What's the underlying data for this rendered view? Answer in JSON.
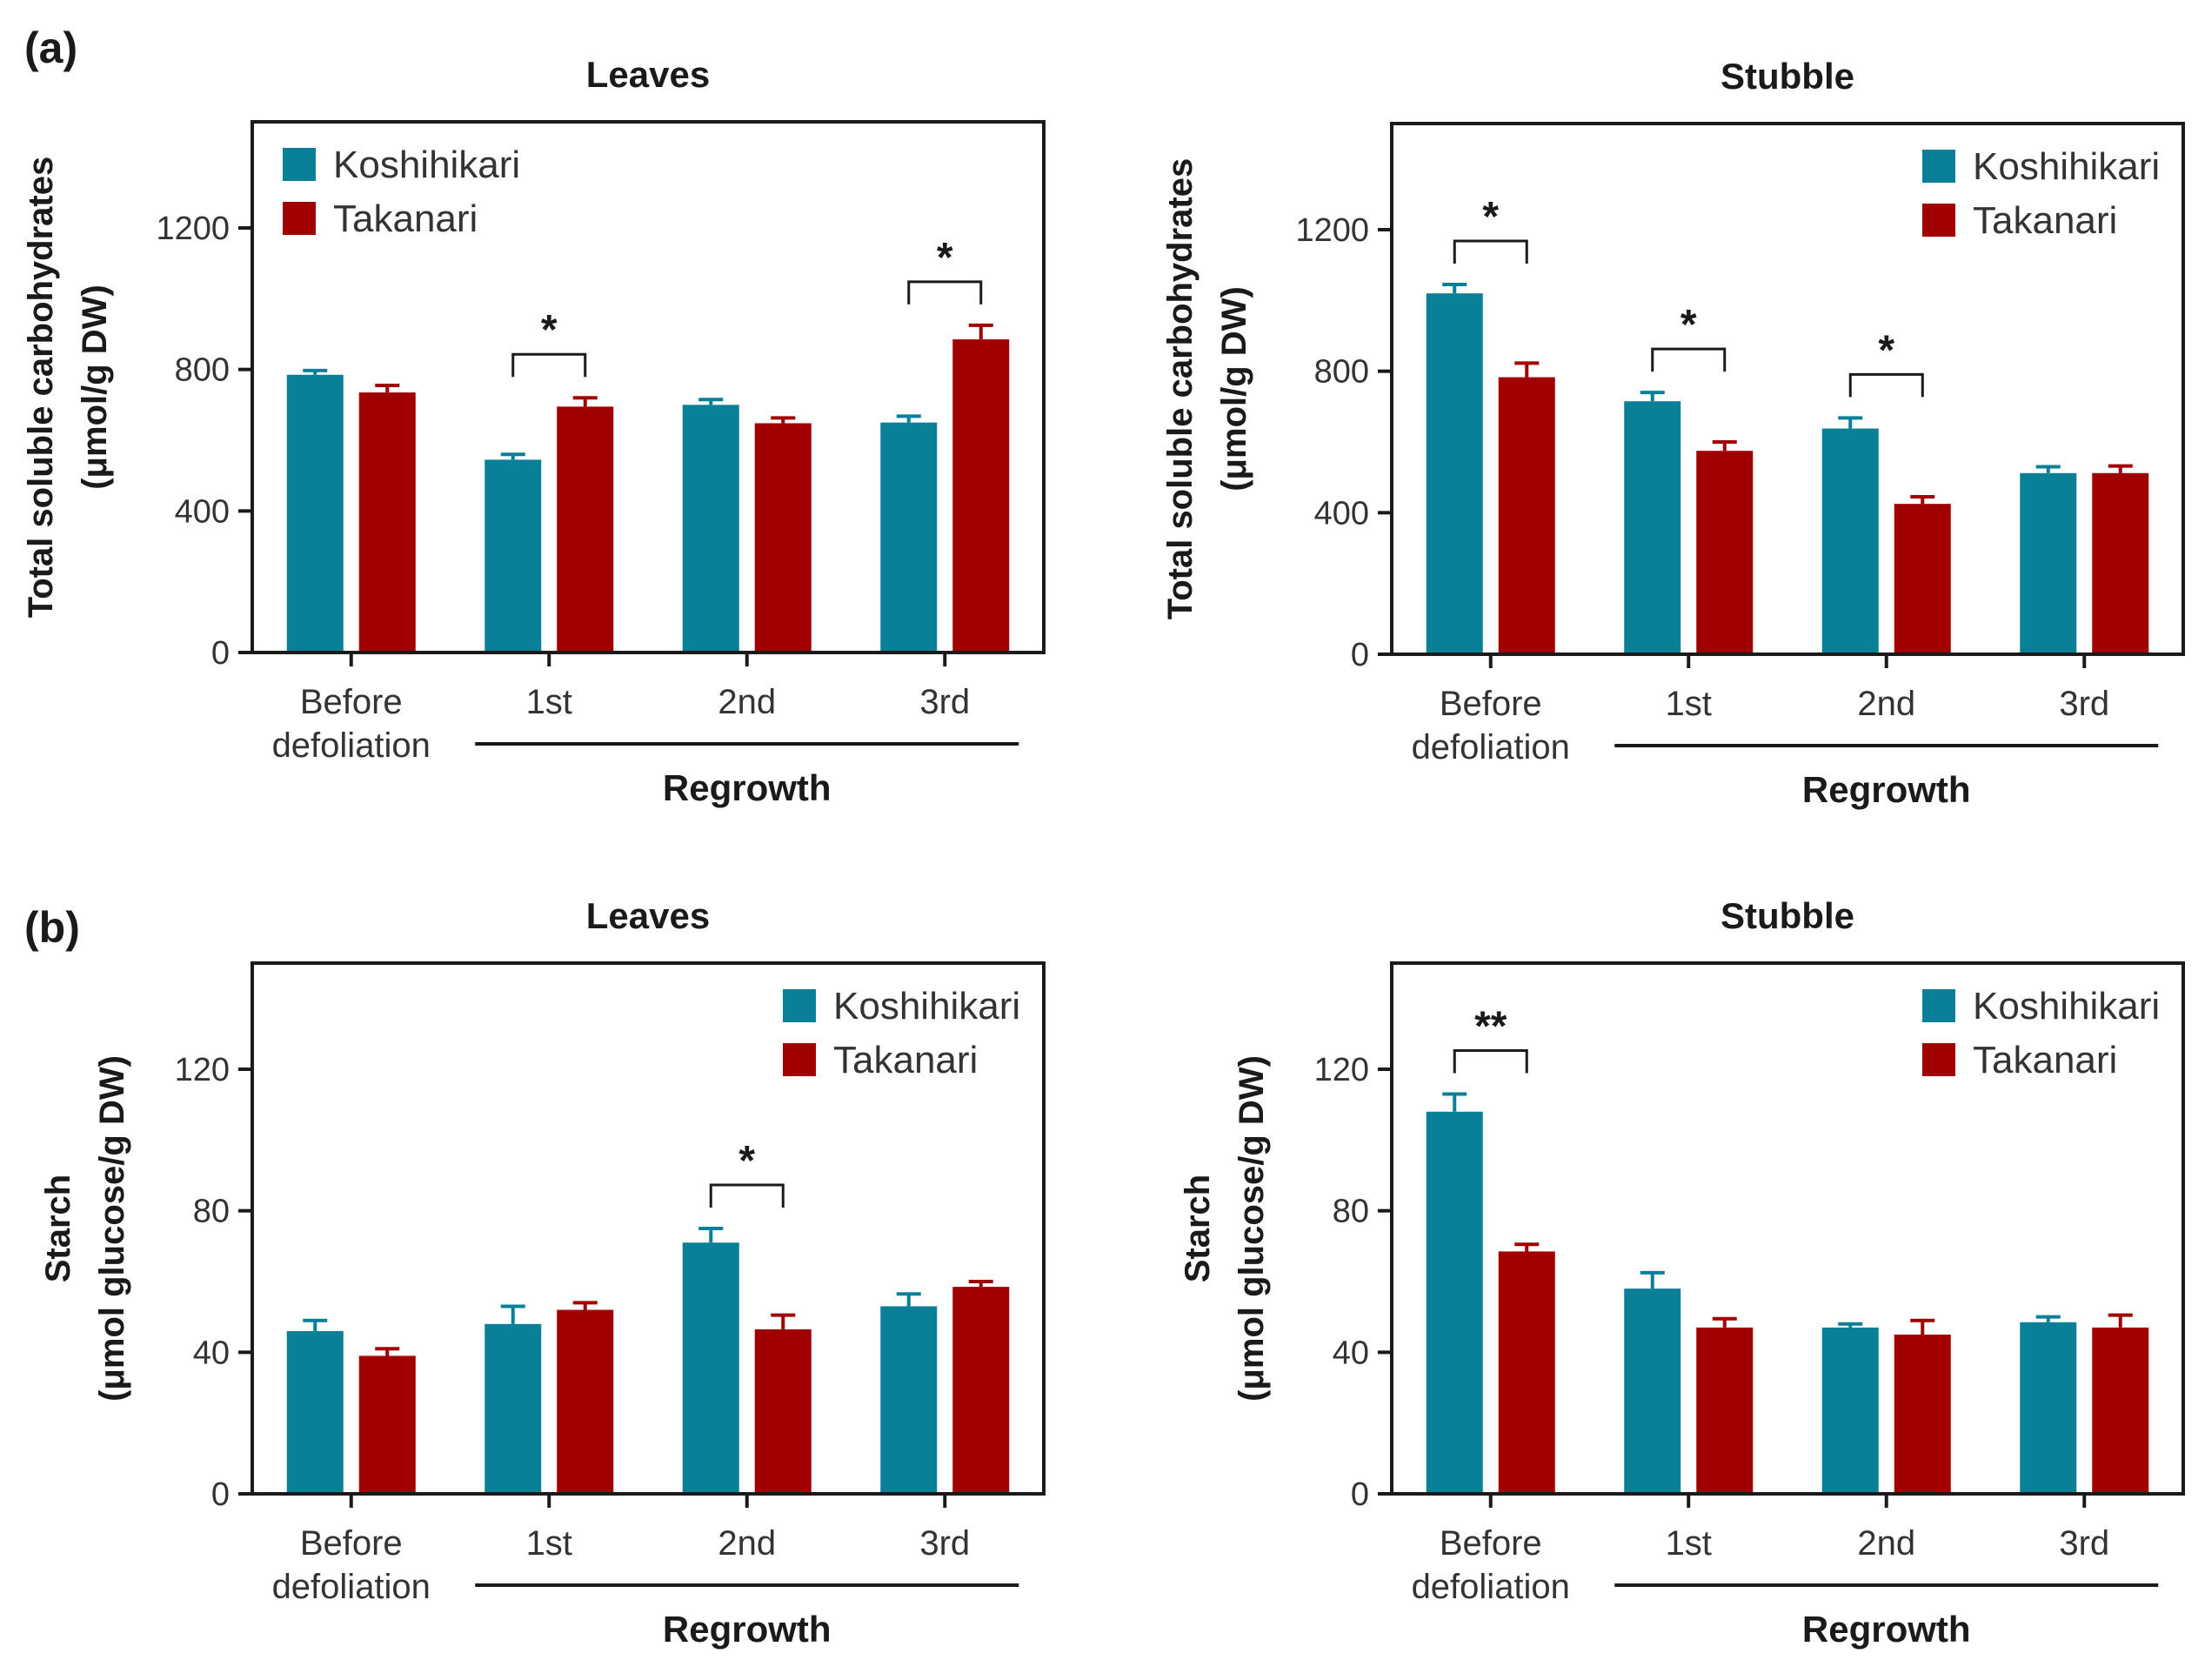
{
  "figure": {
    "panel_labels": [
      "(a)",
      "(b)"
    ],
    "colors": {
      "Koshihikari": "#0a7f98",
      "Takanari": "#a10000",
      "axis": "#1a1a1a"
    }
  },
  "chart_data": [
    {
      "type": "bar",
      "panel": "(a)",
      "title": "Leaves",
      "ylabel": [
        "Total soluble carbohydrates",
        "(μmol/g DW)"
      ],
      "categories": [
        "Before defoliation",
        "1st",
        "2nd",
        "3rd"
      ],
      "category_lines": [
        [
          "Before",
          "defoliation"
        ],
        [
          "1st"
        ],
        [
          "2nd"
        ],
        [
          "3rd"
        ]
      ],
      "group_label": "Regrowth",
      "group_span": [
        1,
        3
      ],
      "ylim": [
        0,
        1500
      ],
      "yticks": [
        0,
        400,
        800,
        1200
      ],
      "legend": "top-left",
      "series": [
        {
          "name": "Koshihikari",
          "values": [
            785,
            545,
            700,
            650
          ],
          "errors": [
            12,
            15,
            15,
            18
          ]
        },
        {
          "name": "Takanari",
          "values": [
            735,
            695,
            648,
            885
          ],
          "errors": [
            20,
            25,
            15,
            40
          ]
        }
      ],
      "significance": [
        {
          "category": 1,
          "label": "*"
        },
        {
          "category": 3,
          "label": "*"
        }
      ]
    },
    {
      "type": "bar",
      "panel": "(a)",
      "title": "Stubble",
      "ylabel": [
        "Total soluble carbohydrates",
        "(μmol/g DW)"
      ],
      "categories": [
        "Before defoliation",
        "1st",
        "2nd",
        "3rd"
      ],
      "category_lines": [
        [
          "Before",
          "defoliation"
        ],
        [
          "1st"
        ],
        [
          "2nd"
        ],
        [
          "3rd"
        ]
      ],
      "group_label": "Regrowth",
      "group_span": [
        1,
        3
      ],
      "ylim": [
        0,
        1500
      ],
      "yticks": [
        0,
        400,
        800,
        1200
      ],
      "legend": "top-right",
      "series": [
        {
          "name": "Koshihikari",
          "values": [
            1020,
            715,
            638,
            512
          ],
          "errors": [
            25,
            25,
            30,
            18
          ]
        },
        {
          "name": "Takanari",
          "values": [
            783,
            575,
            425,
            512
          ],
          "errors": [
            40,
            25,
            20,
            20
          ]
        }
      ],
      "significance": [
        {
          "category": 0,
          "label": "*"
        },
        {
          "category": 1,
          "label": "*"
        },
        {
          "category": 2,
          "label": "*"
        }
      ]
    },
    {
      "type": "bar",
      "panel": "(b)",
      "title": "Leaves",
      "ylabel": [
        "Starch",
        "(μmol glucose/g DW)"
      ],
      "categories": [
        "Before defoliation",
        "1st",
        "2nd",
        "3rd"
      ],
      "category_lines": [
        [
          "Before",
          "defoliation"
        ],
        [
          "1st"
        ],
        [
          "2nd"
        ],
        [
          "3rd"
        ]
      ],
      "group_label": "Regrowth",
      "group_span": [
        1,
        3
      ],
      "ylim": [
        0,
        150
      ],
      "yticks": [
        0,
        40,
        80,
        120
      ],
      "legend": "top-right",
      "series": [
        {
          "name": "Koshihikari",
          "values": [
            46,
            48,
            71,
            53
          ],
          "errors": [
            3,
            5,
            4,
            3.5
          ]
        },
        {
          "name": "Takanari",
          "values": [
            39,
            52,
            46.5,
            58.5
          ],
          "errors": [
            2,
            2,
            4,
            1.5
          ]
        }
      ],
      "significance": [
        {
          "category": 2,
          "label": "*"
        }
      ]
    },
    {
      "type": "bar",
      "panel": "(b)",
      "title": "Stubble",
      "ylabel": [
        "Starch",
        "(μmol glucose/g DW)"
      ],
      "categories": [
        "Before defoliation",
        "1st",
        "2nd",
        "3rd"
      ],
      "category_lines": [
        [
          "Before",
          "defoliation"
        ],
        [
          "1st"
        ],
        [
          "2nd"
        ],
        [
          "3rd"
        ]
      ],
      "group_label": "Regrowth",
      "group_span": [
        1,
        3
      ],
      "ylim": [
        0,
        150
      ],
      "yticks": [
        0,
        40,
        80,
        120
      ],
      "legend": "top-right",
      "series": [
        {
          "name": "Koshihikari",
          "values": [
            108,
            58,
            47,
            48.5
          ],
          "errors": [
            5,
            4.5,
            1,
            1.5
          ]
        },
        {
          "name": "Takanari",
          "values": [
            68.5,
            47,
            45,
            47
          ],
          "errors": [
            2,
            2.5,
            4,
            3.5
          ]
        }
      ],
      "significance": [
        {
          "category": 0,
          "label": "**"
        }
      ]
    }
  ]
}
